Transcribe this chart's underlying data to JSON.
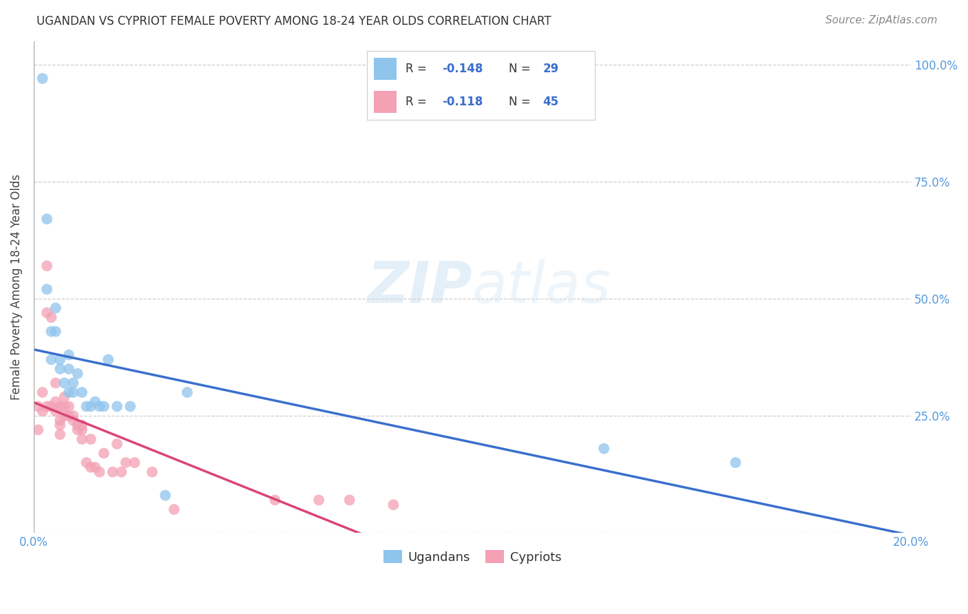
{
  "title": "UGANDAN VS CYPRIOT FEMALE POVERTY AMONG 18-24 YEAR OLDS CORRELATION CHART",
  "source": "Source: ZipAtlas.com",
  "ylabel": "Female Poverty Among 18-24 Year Olds",
  "xlim": [
    0.0,
    0.2
  ],
  "ylim": [
    0.0,
    1.05
  ],
  "xticks": [
    0.0,
    0.05,
    0.1,
    0.15,
    0.2
  ],
  "xticklabels": [
    "0.0%",
    "",
    "",
    "",
    "20.0%"
  ],
  "yticks_right": [
    0.0,
    0.25,
    0.5,
    0.75,
    1.0
  ],
  "yticklabels_right": [
    "",
    "25.0%",
    "50.0%",
    "75.0%",
    "100.0%"
  ],
  "background_color": "#ffffff",
  "grid_color": "#c8c8c8",
  "ugandan_color": "#8fc4ed",
  "cypriot_color": "#f4a0b5",
  "ugandan_line_color": "#3a6fcc",
  "cypriot_line_color": "#d94477",
  "ugandan_x": [
    0.002,
    0.003,
    0.003,
    0.004,
    0.004,
    0.005,
    0.005,
    0.006,
    0.006,
    0.007,
    0.008,
    0.008,
    0.008,
    0.009,
    0.009,
    0.01,
    0.011,
    0.012,
    0.013,
    0.014,
    0.015,
    0.016,
    0.017,
    0.019,
    0.022,
    0.03,
    0.035,
    0.13,
    0.16
  ],
  "ugandan_y": [
    0.97,
    0.67,
    0.52,
    0.43,
    0.37,
    0.43,
    0.48,
    0.35,
    0.37,
    0.32,
    0.3,
    0.35,
    0.38,
    0.32,
    0.3,
    0.34,
    0.3,
    0.27,
    0.27,
    0.28,
    0.27,
    0.27,
    0.37,
    0.27,
    0.27,
    0.08,
    0.3,
    0.18,
    0.15
  ],
  "cypriot_x": [
    0.001,
    0.001,
    0.002,
    0.002,
    0.003,
    0.003,
    0.003,
    0.004,
    0.004,
    0.005,
    0.005,
    0.005,
    0.006,
    0.006,
    0.006,
    0.006,
    0.007,
    0.007,
    0.007,
    0.008,
    0.008,
    0.009,
    0.009,
    0.01,
    0.01,
    0.011,
    0.011,
    0.011,
    0.012,
    0.013,
    0.013,
    0.014,
    0.015,
    0.016,
    0.018,
    0.019,
    0.02,
    0.021,
    0.023,
    0.027,
    0.032,
    0.055,
    0.065,
    0.072,
    0.082
  ],
  "cypriot_y": [
    0.27,
    0.22,
    0.26,
    0.3,
    0.57,
    0.47,
    0.27,
    0.46,
    0.27,
    0.26,
    0.28,
    0.32,
    0.21,
    0.23,
    0.24,
    0.27,
    0.27,
    0.29,
    0.25,
    0.27,
    0.25,
    0.24,
    0.25,
    0.22,
    0.23,
    0.22,
    0.23,
    0.2,
    0.15,
    0.2,
    0.14,
    0.14,
    0.13,
    0.17,
    0.13,
    0.19,
    0.13,
    0.15,
    0.15,
    0.13,
    0.05,
    0.07,
    0.07,
    0.07,
    0.06
  ],
  "legend_r_uganda": "-0.148",
  "legend_n_uganda": "29",
  "legend_r_cypriot": "-0.118",
  "legend_n_cypriot": "45",
  "title_fontsize": 12,
  "tick_fontsize": 12,
  "label_fontsize": 12
}
